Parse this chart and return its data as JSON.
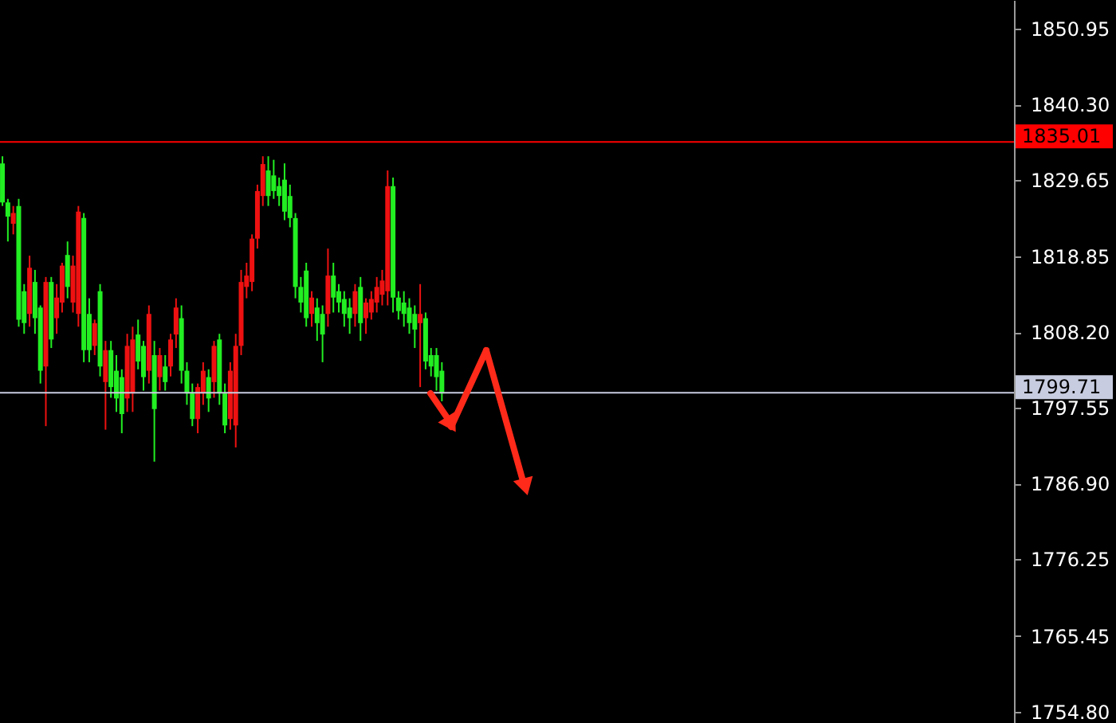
{
  "chart_data": {
    "type": "candlestick",
    "categories": [
      null,
      null,
      null,
      null,
      null,
      null,
      null,
      null,
      null,
      null,
      null,
      null,
      null,
      null,
      null,
      null,
      null,
      null,
      null,
      null,
      null,
      null,
      null,
      null,
      null,
      null,
      null,
      null,
      null,
      null,
      null,
      null,
      null,
      null,
      null,
      null,
      null,
      null,
      null,
      null,
      null,
      null,
      null,
      null,
      null,
      null,
      null,
      null,
      null,
      null,
      null,
      null,
      null,
      null,
      null,
      null,
      null,
      null,
      null,
      null,
      null,
      null,
      null,
      null,
      null,
      null,
      null,
      null,
      null,
      null,
      null,
      null,
      null,
      null,
      null,
      null,
      null,
      null,
      null,
      null,
      null,
      null,
      null,
      null,
      null,
      null,
      null,
      null,
      null,
      null,
      null,
      null,
      null,
      null,
      null,
      null,
      null,
      null,
      null,
      null,
      null,
      null,
      null,
      null,
      null,
      null,
      null,
      null,
      null,
      null,
      null,
      null,
      null,
      null,
      null,
      null,
      null,
      null,
      null,
      null,
      null,
      null,
      null,
      null,
      null,
      null,
      null,
      null,
      null,
      null,
      null,
      null,
      null,
      null,
      null,
      null,
      null,
      null,
      null,
      null,
      null,
      null,
      null,
      null,
      null,
      null,
      null,
      null,
      null,
      null,
      null,
      null,
      null,
      null,
      null,
      null,
      null,
      null,
      null,
      null,
      null,
      null,
      null,
      null,
      null,
      null,
      null,
      null,
      null,
      null,
      null,
      null,
      null,
      null,
      null,
      null,
      null,
      null,
      null,
      null,
      null,
      null,
      null,
      null,
      null,
      null,
      null
    ],
    "ohlc": [
      [
        1832,
        1833,
        1826,
        1826.5
      ],
      [
        1826.5,
        1827,
        1821,
        1824.5
      ],
      [
        1823.5,
        1826,
        1822,
        1825
      ],
      [
        1826,
        1827,
        1809,
        1810
      ],
      [
        1814,
        1815,
        1808,
        1809.5
      ],
      [
        1810.8,
        1819,
        1809,
        1817.3
      ],
      [
        1815.3,
        1817,
        1808,
        1810.2
      ],
      [
        1811.7,
        1812,
        1801,
        1802.8
      ],
      [
        1803.4,
        1816,
        1795,
        1815.3
      ],
      [
        1815.3,
        1816,
        1806,
        1807.2
      ],
      [
        1810.2,
        1815,
        1808,
        1813.1
      ],
      [
        1812.4,
        1818,
        1811,
        1817.6
      ],
      [
        1819.1,
        1821,
        1813,
        1814.6
      ],
      [
        1812.4,
        1819,
        1811,
        1817.6
      ],
      [
        1810.8,
        1826,
        1809,
        1825.2
      ],
      [
        1824.3,
        1825,
        1804,
        1805.7
      ],
      [
        1810.8,
        1813,
        1804,
        1805.7
      ],
      [
        1806.3,
        1810,
        1805,
        1809.5
      ],
      [
        1814,
        1815,
        1802,
        1803.4
      ],
      [
        1801.2,
        1807,
        1794.5,
        1805.7
      ],
      [
        1805.7,
        1807,
        1799,
        1800.5
      ],
      [
        1802.8,
        1805,
        1797,
        1798.9
      ],
      [
        1801.9,
        1803,
        1794,
        1796.7
      ],
      [
        1798.9,
        1808,
        1797,
        1806.3
      ],
      [
        1799.6,
        1809,
        1797,
        1807.2
      ],
      [
        1807.9,
        1810,
        1803,
        1804.1
      ],
      [
        1806.3,
        1807,
        1800,
        1801.9
      ],
      [
        1802.8,
        1812,
        1801,
        1810.8
      ],
      [
        1805,
        1807,
        1790,
        1797.4
      ],
      [
        1801.9,
        1806,
        1800,
        1805
      ],
      [
        1803.4,
        1805,
        1800,
        1801.2
      ],
      [
        1803.4,
        1808,
        1802,
        1807.2
      ],
      [
        1807.9,
        1813,
        1806,
        1811.7
      ],
      [
        1810.2,
        1812,
        1801,
        1802.8
      ],
      [
        1802.8,
        1804,
        1798,
        1799.6
      ],
      [
        1799.6,
        1801,
        1795,
        1796
      ],
      [
        1796,
        1801,
        1794,
        1800.5
      ],
      [
        1799.6,
        1804,
        1798,
        1802.8
      ],
      [
        1801.9,
        1803,
        1797,
        1798.9
      ],
      [
        1801.2,
        1807,
        1799,
        1806.3
      ],
      [
        1807.2,
        1808,
        1798,
        1799.6
      ],
      [
        1799.6,
        1801,
        1794,
        1795.1
      ],
      [
        1796,
        1804,
        1794.5,
        1802.8
      ],
      [
        1795.1,
        1808,
        1792,
        1806.3
      ],
      [
        1806.3,
        1817,
        1805,
        1815.3
      ],
      [
        1814.6,
        1818,
        1813,
        1816.2
      ],
      [
        1815.3,
        1822,
        1814,
        1821.4
      ],
      [
        1821.4,
        1829,
        1820,
        1828.1
      ],
      [
        1827.4,
        1833,
        1826,
        1831.9
      ],
      [
        1831,
        1833,
        1826,
        1827.4
      ],
      [
        1830.3,
        1832.5,
        1827,
        1828.1
      ],
      [
        1828.8,
        1830,
        1826,
        1827.4
      ],
      [
        1829.7,
        1832,
        1824,
        1825.2
      ],
      [
        1827.4,
        1829,
        1823,
        1824.3
      ],
      [
        1824.3,
        1825,
        1813,
        1814.6
      ],
      [
        1814.6,
        1816,
        1811,
        1812.4
      ],
      [
        1816.9,
        1818,
        1809,
        1810.2
      ],
      [
        1810.8,
        1814,
        1809,
        1813.1
      ],
      [
        1811.7,
        1813,
        1807,
        1809.5
      ],
      [
        1810.8,
        1812,
        1804,
        1807.9
      ],
      [
        1810.8,
        1820,
        1809,
        1816.2
      ],
      [
        1816.2,
        1818,
        1811,
        1813.1
      ],
      [
        1814,
        1815,
        1811,
        1812.4
      ],
      [
        1812.9,
        1814,
        1809,
        1810.8
      ],
      [
        1811.7,
        1813,
        1808,
        1810.2
      ],
      [
        1810.8,
        1815,
        1809,
        1814
      ],
      [
        1814.6,
        1816,
        1807,
        1809.5
      ],
      [
        1810.2,
        1813,
        1808,
        1812.4
      ],
      [
        1811,
        1814,
        1810,
        1812.9
      ],
      [
        1812.4,
        1816,
        1811,
        1814.6
      ],
      [
        1813.5,
        1817,
        1812,
        1815.5
      ],
      [
        1814,
        1831,
        1812,
        1828.8
      ],
      [
        1828.8,
        1830,
        1811,
        1813.1
      ],
      [
        1813.1,
        1814,
        1810,
        1811.2
      ],
      [
        1812.4,
        1814,
        1809,
        1810.8
      ],
      [
        1811.7,
        1813,
        1808,
        1809.5
      ],
      [
        1810.8,
        1812,
        1806,
        1808.6
      ],
      [
        1809.5,
        1815,
        1800.5,
        1810.8
      ],
      [
        1810.2,
        1811,
        1803,
        1804.1
      ],
      [
        1805,
        1806,
        1802,
        1803.4
      ],
      [
        1805,
        1806,
        1800,
        1801.9
      ],
      [
        1802.8,
        1804,
        1798.5,
        1799.6
      ],
      null,
      null,
      null,
      null,
      null,
      null,
      null,
      null,
      null,
      null,
      null,
      null,
      null,
      null,
      null,
      null,
      null,
      null,
      null,
      null,
      null,
      null,
      null,
      null,
      null,
      null,
      null,
      null,
      null,
      null,
      null,
      null,
      null,
      null,
      null,
      null,
      null,
      null,
      null,
      null,
      null,
      null,
      null,
      null,
      null,
      null,
      null,
      null,
      null,
      null,
      null,
      null,
      null,
      null,
      null,
      null,
      null,
      null,
      null,
      null,
      null,
      null,
      null,
      null,
      null,
      null,
      null,
      null,
      null,
      null,
      null,
      null,
      null,
      null,
      null,
      null,
      null,
      null,
      null,
      null,
      null,
      null,
      null,
      null,
      null,
      null,
      null,
      null,
      null,
      null,
      null,
      null,
      null,
      null,
      null,
      null,
      null,
      null,
      null,
      null,
      null,
      null,
      null,
      null,
      null
    ],
    "colors": [
      "#22ee22",
      "#22ee22",
      "#ee1111",
      "#22ee22",
      "#22ee22",
      "#ee1111",
      "#22ee22",
      "#22ee22",
      "#ee1111",
      "#22ee22",
      "#ee1111",
      "#ee1111",
      "#22ee22",
      "#ee1111",
      "#ee1111",
      "#22ee22",
      "#22ee22",
      "#ee1111",
      "#22ee22",
      "#ee1111",
      "#22ee22",
      "#22ee22",
      "#22ee22",
      "#ee1111",
      "#ee1111",
      "#22ee22",
      "#22ee22",
      "#ee1111",
      "#22ee22",
      "#ee1111",
      "#22ee22",
      "#ee1111",
      "#ee1111",
      "#22ee22",
      "#22ee22",
      "#22ee22",
      "#ee1111",
      "#ee1111",
      "#22ee22",
      "#ee1111",
      "#22ee22",
      "#22ee22",
      "#ee1111",
      "#ee1111",
      "#ee1111",
      "#ee1111",
      "#ee1111",
      "#ee1111",
      "#ee1111",
      "#22ee22",
      "#22ee22",
      "#22ee22",
      "#22ee22",
      "#22ee22",
      "#22ee22",
      "#22ee22",
      "#22ee22",
      "#ee1111",
      "#22ee22",
      "#22ee22",
      "#ee1111",
      "#22ee22",
      "#22ee22",
      "#22ee22",
      "#22ee22",
      "#ee1111",
      "#22ee22",
      "#ee1111",
      "#ee1111",
      "#ee1111",
      "#ee1111",
      "#ee1111",
      "#22ee22",
      "#22ee22",
      "#22ee22",
      "#22ee22",
      "#22ee22",
      "#ee1111",
      "#22ee22",
      "#22ee22",
      "#22ee22",
      "#22ee22",
      null,
      null,
      null,
      null,
      null,
      null,
      null,
      null,
      null,
      null,
      null,
      null,
      null,
      null,
      null,
      null,
      null,
      null,
      null,
      null,
      null,
      null,
      null,
      null,
      null,
      null,
      null,
      null,
      null,
      null,
      null,
      null,
      null,
      null,
      null,
      null,
      null,
      null,
      null,
      null,
      null,
      null,
      null,
      null,
      null,
      null,
      null,
      null,
      null,
      null,
      null,
      null,
      null,
      null,
      null,
      null,
      null,
      null,
      null,
      null,
      null,
      null,
      null,
      null,
      null,
      null,
      null,
      null,
      null,
      null,
      null,
      null,
      null,
      null,
      null,
      null,
      null,
      null,
      null,
      null,
      null,
      null,
      null,
      null,
      null,
      null,
      null,
      null,
      null,
      null,
      null,
      null,
      null,
      null,
      null,
      null,
      null,
      null,
      null,
      null,
      null,
      null,
      null,
      null,
      null
    ],
    "ylim": [
      1753.2,
      1855.0
    ],
    "yticks": [
      1850.95,
      {
        "value": 1840.3,
        "label": "1840.30"
      },
      1829.65,
      1818.85,
      {
        "value": 1808.2,
        "label": "1808.20"
      },
      1797.55,
      {
        "value": 1786.9,
        "label": "1786.90"
      },
      1776.25,
      1765.45,
      {
        "value": 1754.8,
        "label": "1754.80"
      }
    ],
    "ref_lines": [
      {
        "axis": "y",
        "value": 1835.01,
        "label": "1835.01",
        "color": "#ff0000"
      },
      {
        "axis": "y",
        "value": 1799.71,
        "label": "1799.71",
        "color": "#c8cce0"
      }
    ],
    "grid": false,
    "tick_labels": "y"
  }
}
